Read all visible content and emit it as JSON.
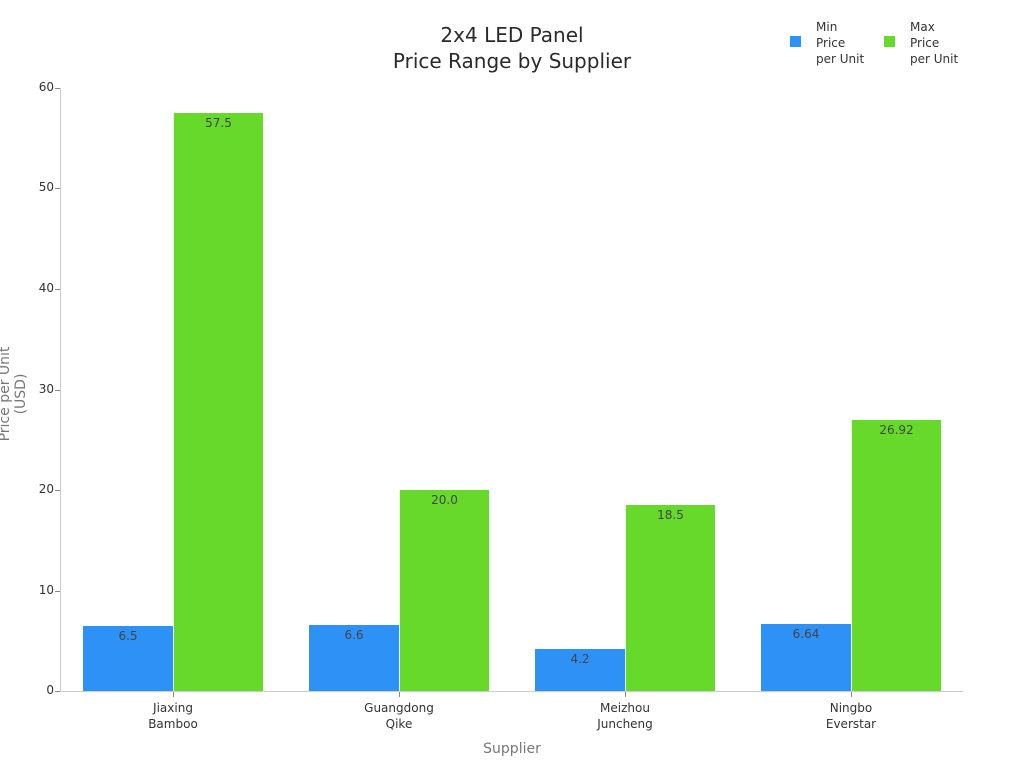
{
  "chart_data": {
    "type": "bar",
    "title": "2x4 LED Panel\nPrice Range by Supplier",
    "title_lines": [
      "2x4 LED Panel",
      "Price Range by Supplier"
    ],
    "xlabel": "Supplier",
    "ylabel": "Price per Unit (USD)",
    "ylim": [
      0,
      60
    ],
    "yticks": [
      0,
      10,
      20,
      30,
      40,
      50,
      60
    ],
    "grid": false,
    "legend_position": "top-right",
    "categories": [
      "Jiaxing\nBamboo",
      "Guangdong\nQike",
      "Meizhou\nJuncheng",
      "Ningbo\nEverstar"
    ],
    "series": [
      {
        "name": "Min Price per Unit",
        "legend_label": "Min\nPrice\nper Unit",
        "color": "#2e91f5",
        "values": [
          6.5,
          6.6,
          4.2,
          6.64
        ],
        "labels": [
          "6.5",
          "6.6",
          "4.2",
          "6.64"
        ]
      },
      {
        "name": "Max Price per Unit",
        "legend_label": "Max\nPrice\nper Unit",
        "color": "#66d92a",
        "values": [
          57.5,
          20.0,
          18.5,
          26.92
        ],
        "labels": [
          "57.5",
          "20.0",
          "18.5",
          "26.92"
        ]
      }
    ]
  }
}
